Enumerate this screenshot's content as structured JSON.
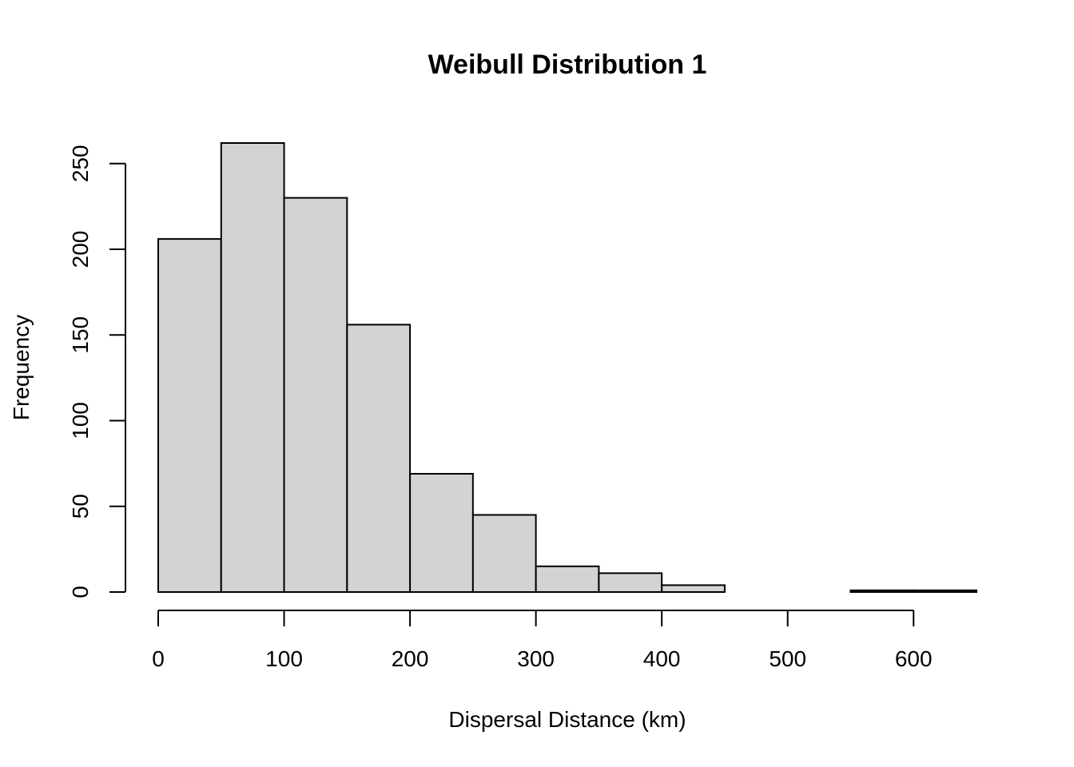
{
  "chart_data": {
    "type": "bar",
    "title": "Weibull Distribution 1",
    "xlabel": "Dispersal Distance (km)",
    "ylabel": "Frequency",
    "bin_edges": [
      0,
      50,
      100,
      150,
      200,
      250,
      300,
      350,
      400,
      450,
      500,
      550,
      600,
      650
    ],
    "values": [
      206,
      262,
      230,
      156,
      69,
      45,
      15,
      11,
      4,
      0,
      0,
      1,
      1
    ],
    "xlim": [
      0,
      650
    ],
    "ylim": [
      0,
      262
    ],
    "x_ticks": [
      0,
      100,
      200,
      300,
      400,
      500,
      600
    ],
    "y_ticks": [
      0,
      50,
      100,
      150,
      200,
      250
    ],
    "grid": false,
    "colors": {
      "bar_fill": "#d3d3d3",
      "bar_stroke": "#000000"
    }
  }
}
